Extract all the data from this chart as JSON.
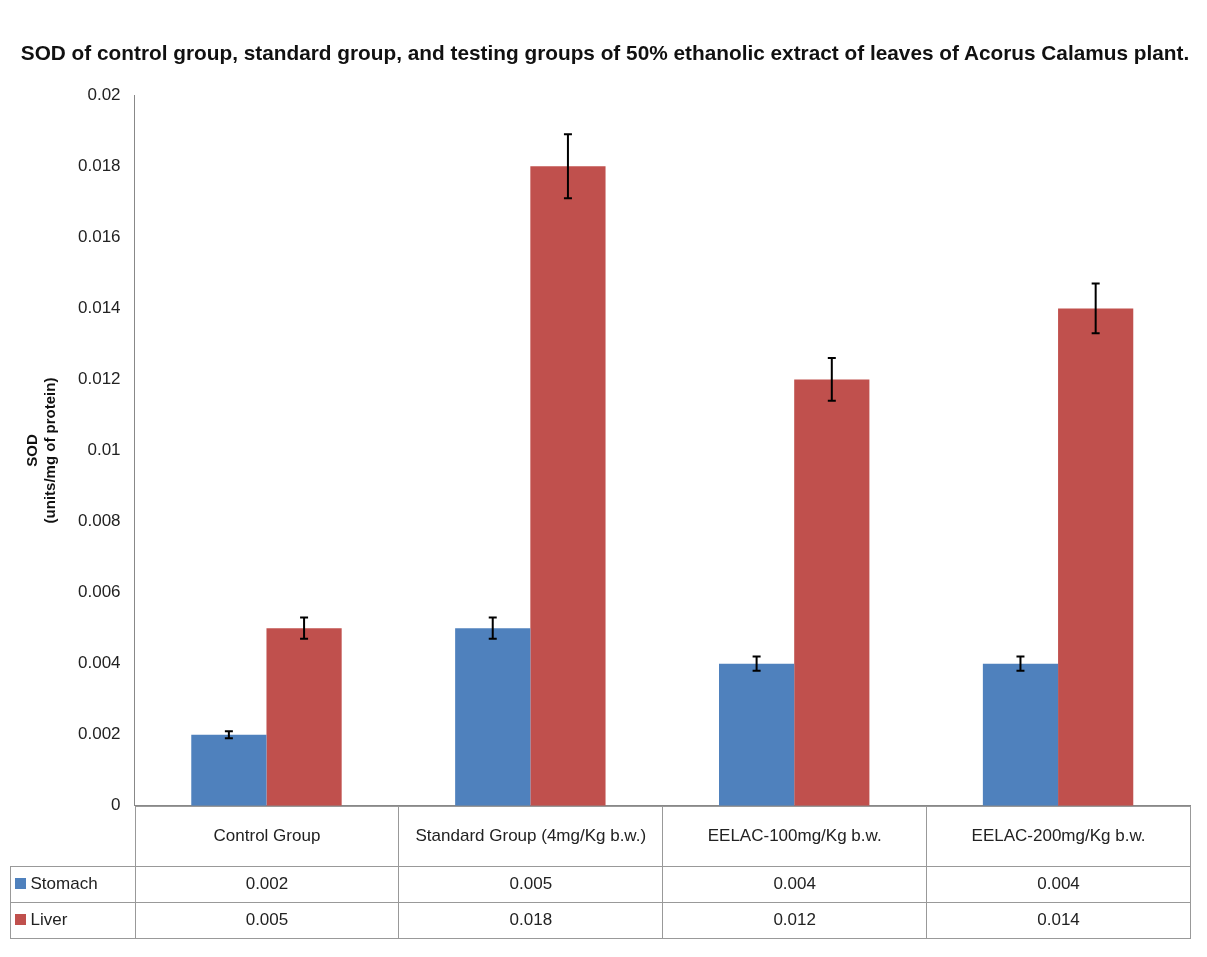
{
  "chart_data": {
    "type": "bar",
    "title": "SOD of control group, standard group, and testing groups of 50% ethanolic extract of leaves of Acorus Calamus plant.",
    "ylabel": "SOD\n(units/mg of protein)",
    "categories": [
      "Control Group",
      "Standard Group (4mg/Kg b.w.)",
      "EELAC-100mg/Kg b.w.",
      "EELAC-200mg/Kg b.w."
    ],
    "series": [
      {
        "name": "Stomach",
        "color": "#4f81bd",
        "values": [
          0.002,
          0.005,
          0.004,
          0.004
        ],
        "errors": [
          0.0001,
          0.0003,
          0.0002,
          0.0002
        ]
      },
      {
        "name": "Liver",
        "color": "#c0504d",
        "values": [
          0.005,
          0.018,
          0.012,
          0.014
        ],
        "errors": [
          0.0003,
          0.0009,
          0.0006,
          0.0007
        ]
      }
    ],
    "ylim": [
      0,
      0.02
    ],
    "yticks": [
      0,
      0.002,
      0.004,
      0.006,
      0.008,
      0.01,
      0.012,
      0.014,
      0.016,
      0.018,
      0.02
    ],
    "grid": false,
    "legend": "bottom",
    "data_labels": true
  }
}
